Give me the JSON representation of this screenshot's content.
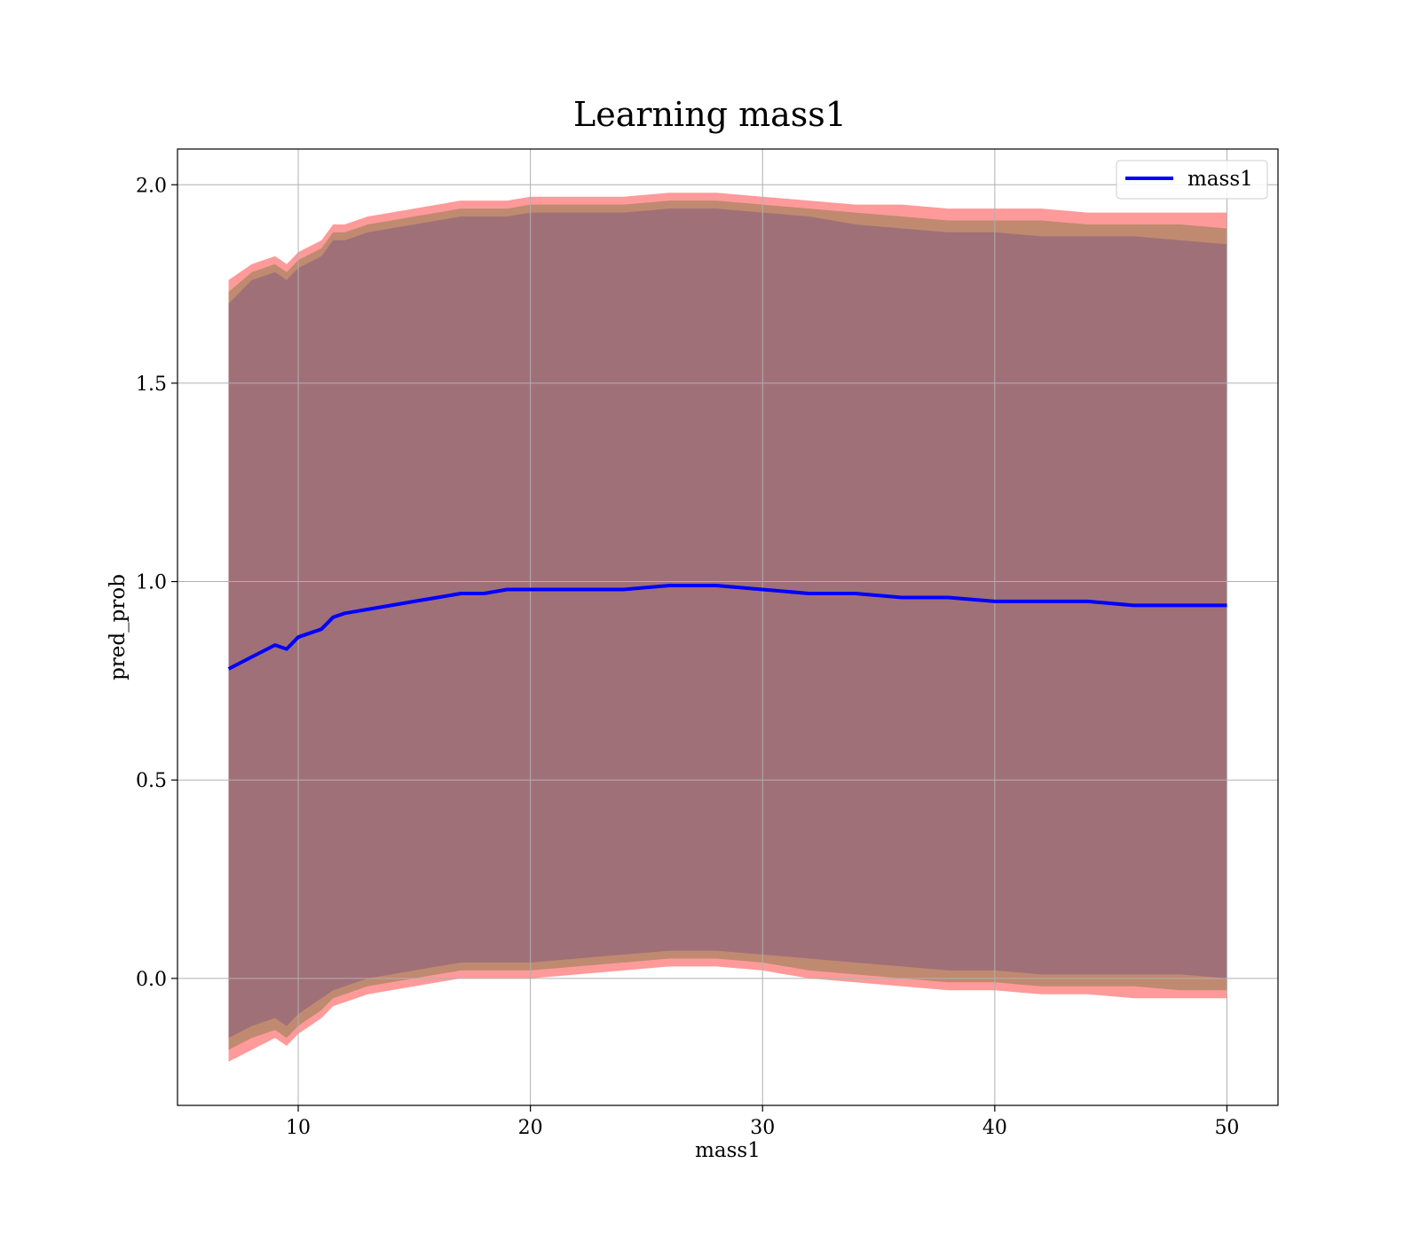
{
  "chart_data": {
    "type": "line",
    "title": "Learning mass1",
    "xlabel": "mass1",
    "ylabel": "pred_prob",
    "xlim": [
      4.8,
      52.2
    ],
    "ylim": [
      -0.32,
      2.09
    ],
    "xticks": [
      10,
      20,
      30,
      40,
      50
    ],
    "xtick_labels": [
      "10",
      "20",
      "30",
      "40",
      "50"
    ],
    "yticks": [
      0.0,
      0.5,
      1.0,
      1.5,
      2.0
    ],
    "ytick_labels": [
      "0.0",
      "0.5",
      "1.0",
      "1.5",
      "2.0"
    ],
    "grid": true,
    "legend": {
      "position": "top-right",
      "entries": [
        "mass1"
      ]
    },
    "colors": {
      "line": "#0000ff",
      "band_outer": "#ff9a9a",
      "band_middle": "#c08a70",
      "band_inner": "#a07078",
      "grid": "#b0b0b0"
    },
    "series": [
      {
        "name": "mass1",
        "x": [
          7,
          8,
          9,
          9.5,
          10,
          11,
          11.5,
          12,
          13,
          14,
          15,
          16,
          17,
          18,
          19,
          20,
          22,
          24,
          26,
          28,
          30,
          32,
          34,
          36,
          38,
          40,
          42,
          44,
          46,
          48,
          50
        ],
        "y": [
          0.78,
          0.81,
          0.84,
          0.83,
          0.86,
          0.88,
          0.91,
          0.92,
          0.93,
          0.94,
          0.95,
          0.96,
          0.97,
          0.97,
          0.98,
          0.98,
          0.98,
          0.98,
          0.99,
          0.99,
          0.98,
          0.97,
          0.97,
          0.96,
          0.96,
          0.95,
          0.95,
          0.95,
          0.94,
          0.94,
          0.94
        ]
      }
    ],
    "bands": [
      {
        "label": "outer",
        "upper": [
          1.76,
          1.8,
          1.82,
          1.8,
          1.83,
          1.86,
          1.9,
          1.9,
          1.92,
          1.93,
          1.94,
          1.95,
          1.96,
          1.96,
          1.96,
          1.97,
          1.97,
          1.97,
          1.98,
          1.98,
          1.97,
          1.96,
          1.95,
          1.95,
          1.94,
          1.94,
          1.94,
          1.93,
          1.93,
          1.93,
          1.93
        ],
        "lower": [
          -0.21,
          -0.18,
          -0.15,
          -0.17,
          -0.14,
          -0.1,
          -0.07,
          -0.06,
          -0.04,
          -0.03,
          -0.02,
          -0.01,
          0.0,
          0.0,
          0.0,
          0.0,
          0.01,
          0.02,
          0.03,
          0.03,
          0.02,
          0.0,
          -0.01,
          -0.02,
          -0.03,
          -0.03,
          -0.04,
          -0.04,
          -0.05,
          -0.05,
          -0.05
        ]
      },
      {
        "label": "middle",
        "upper": [
          1.73,
          1.78,
          1.8,
          1.78,
          1.81,
          1.84,
          1.88,
          1.88,
          1.9,
          1.91,
          1.92,
          1.93,
          1.94,
          1.94,
          1.94,
          1.95,
          1.95,
          1.95,
          1.96,
          1.96,
          1.95,
          1.94,
          1.93,
          1.92,
          1.91,
          1.91,
          1.91,
          1.9,
          1.9,
          1.9,
          1.89
        ],
        "lower": [
          -0.18,
          -0.15,
          -0.13,
          -0.15,
          -0.12,
          -0.08,
          -0.05,
          -0.04,
          -0.02,
          -0.01,
          0.0,
          0.01,
          0.02,
          0.02,
          0.02,
          0.02,
          0.03,
          0.04,
          0.05,
          0.05,
          0.04,
          0.02,
          0.01,
          0.0,
          -0.01,
          -0.01,
          -0.02,
          -0.02,
          -0.02,
          -0.03,
          -0.03
        ]
      },
      {
        "label": "inner",
        "upper": [
          1.7,
          1.76,
          1.78,
          1.76,
          1.79,
          1.82,
          1.86,
          1.86,
          1.88,
          1.89,
          1.9,
          1.91,
          1.92,
          1.92,
          1.92,
          1.93,
          1.93,
          1.93,
          1.94,
          1.94,
          1.93,
          1.92,
          1.9,
          1.89,
          1.88,
          1.88,
          1.87,
          1.87,
          1.87,
          1.86,
          1.85
        ],
        "lower": [
          -0.15,
          -0.12,
          -0.1,
          -0.12,
          -0.09,
          -0.05,
          -0.03,
          -0.02,
          0.0,
          0.01,
          0.02,
          0.03,
          0.04,
          0.04,
          0.04,
          0.04,
          0.05,
          0.06,
          0.07,
          0.07,
          0.06,
          0.05,
          0.04,
          0.03,
          0.02,
          0.02,
          0.01,
          0.01,
          0.01,
          0.01,
          0.0
        ]
      }
    ]
  }
}
